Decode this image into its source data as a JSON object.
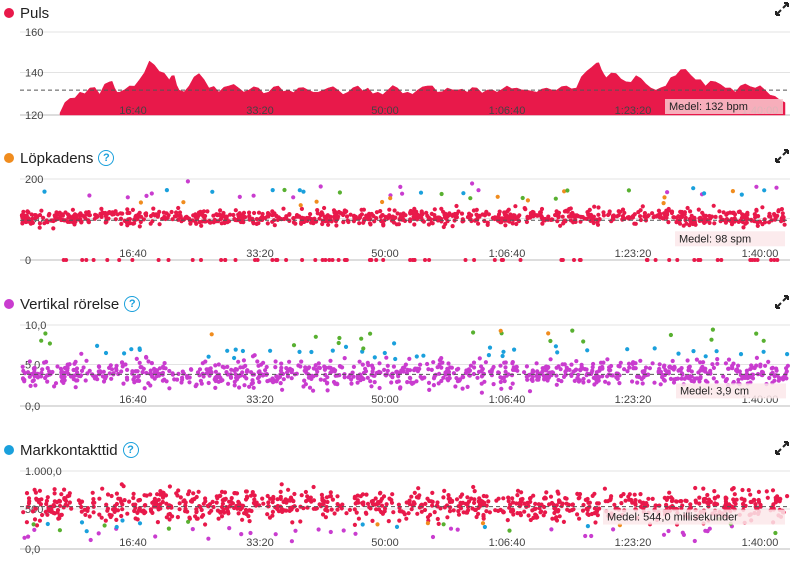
{
  "colors": {
    "heart": "#e8194a",
    "cadence_dot": "#f08c1e",
    "vertical_dot": "#c93ccf",
    "contact_dot": "#1aa0dc",
    "green": "#58b030",
    "help": "#1aa0dc"
  },
  "icons": {
    "expand": "expand-icon",
    "help": "help-icon"
  },
  "chart_data": [
    {
      "type": "area",
      "title": "Puls",
      "yticks": [
        "160",
        "140",
        "120"
      ],
      "ylim": [
        120,
        160
      ],
      "xticks": [
        "16:40",
        "33:20",
        "50:00",
        "1:06:40",
        "1:23:20",
        "1:40:00"
      ],
      "average": 132,
      "average_label": "Medel: 132 bpm",
      "series": [
        {
          "x": [
            0,
            10,
            20,
            30,
            40,
            50,
            55,
            60,
            70,
            80,
            90,
            100,
            110,
            115,
            120,
            130,
            140,
            150,
            160,
            170,
            180,
            190,
            200,
            210,
            220,
            230,
            240,
            250,
            260,
            270,
            280,
            290,
            300,
            310,
            320,
            330,
            340,
            350,
            360,
            370,
            380,
            390,
            400,
            410,
            420,
            430,
            440,
            450,
            460,
            470,
            480,
            490,
            500,
            510,
            520,
            530,
            540,
            545,
            550,
            560,
            570,
            580,
            590,
            600,
            610,
            620,
            630,
            640,
            650,
            660,
            670,
            680,
            690,
            700,
            710,
            720,
            730
          ],
          "values": [
            121,
            128,
            131,
            133,
            130,
            136,
            133,
            131,
            134,
            137,
            146,
            141,
            137,
            139,
            132,
            134,
            140,
            133,
            131,
            134,
            133,
            132,
            133,
            131,
            134,
            132,
            133,
            132,
            131,
            133,
            132,
            131,
            134,
            133,
            131,
            132,
            133,
            131,
            132,
            134,
            131,
            133,
            132,
            131,
            133,
            132,
            131,
            134,
            133,
            132,
            131,
            133,
            132,
            134,
            133,
            141,
            145,
            142,
            138,
            140,
            136,
            139,
            135,
            132,
            134,
            139,
            142,
            137,
            134,
            136,
            133,
            131,
            135,
            133,
            132,
            129,
            126
          ]
        }
      ]
    },
    {
      "type": "scatter",
      "title": "Löpkadens",
      "yticks": [
        "200",
        "100",
        "0"
      ],
      "ylim": [
        0,
        200
      ],
      "xticks": [
        "16:40",
        "33:20",
        "50:00",
        "1:06:40",
        "1:23:20",
        "1:40:00"
      ],
      "average": 98,
      "average_label": "Medel: 98 spm",
      "series": [
        {
          "name": "",
          "mean": 105,
          "spread": 14,
          "low": 0
        }
      ]
    },
    {
      "type": "scatter",
      "title": "Vertikal rörelse",
      "yticks": [
        "10,0",
        "5,0",
        "0,0"
      ],
      "ylim": [
        0,
        10
      ],
      "xticks": [
        "16:40",
        "33:20",
        "50:00",
        "1:06:40",
        "1:23:20",
        "1:40:00"
      ],
      "average": 3.9,
      "average_label": "Medel: 3,9 cm",
      "series": [
        {
          "name": "",
          "mean": 4.0,
          "spread": 1.1
        }
      ]
    },
    {
      "type": "scatter",
      "title": "Markkontakttid",
      "yticks": [
        "1.000,0",
        "500,0",
        "0,0"
      ],
      "ylim": [
        0,
        1000
      ],
      "xticks": [
        "16:40",
        "33:20",
        "50:00",
        "1:06:40",
        "1:23:20",
        "1:40:00"
      ],
      "average": 544,
      "average_label": "Medel: 544,0 millisekunder",
      "series": [
        {
          "name": "",
          "mean": 560,
          "spread": 130
        }
      ]
    }
  ]
}
